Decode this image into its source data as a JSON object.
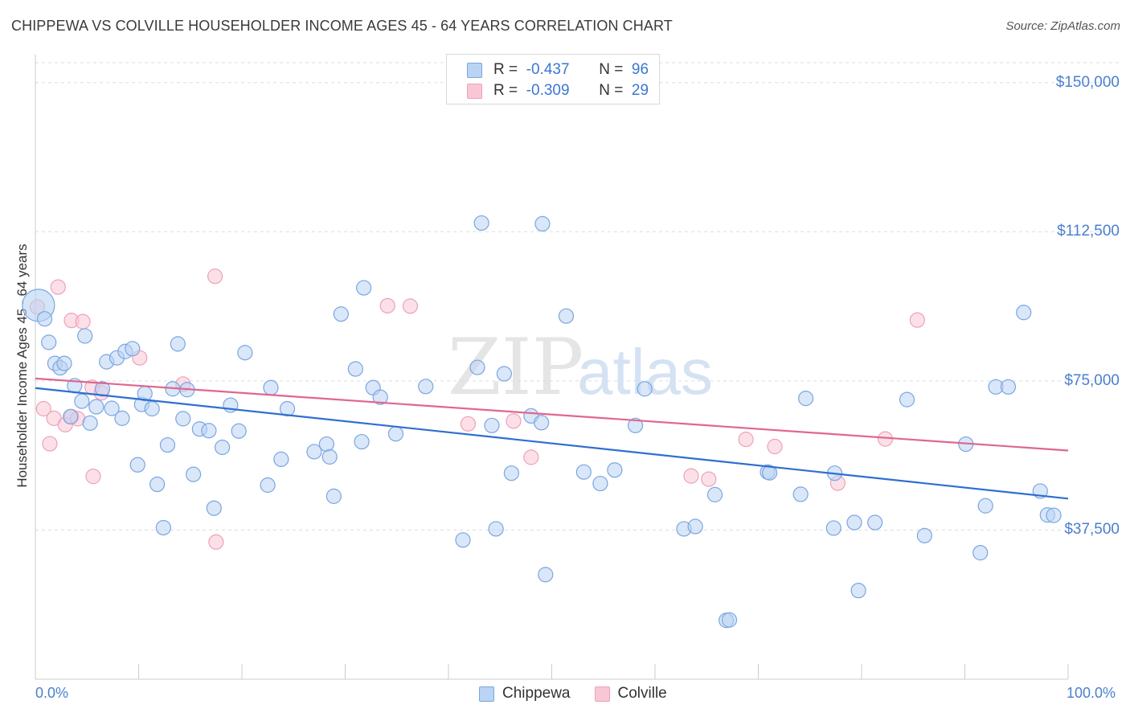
{
  "title": "CHIPPEWA VS COLVILLE HOUSEHOLDER INCOME AGES 45 - 64 YEARS CORRELATION CHART",
  "source": "Source: ZipAtlas.com",
  "watermark": {
    "zip": "ZIP",
    "atlas": "atlas"
  },
  "colors": {
    "chippewa_fill": "#b9d4f4",
    "chippewa_stroke": "#7aa6e0",
    "chippewa_line": "#2f6fcf",
    "colville_fill": "#f9c6d6",
    "colville_stroke": "#eea1b8",
    "colville_line": "#e06690",
    "tick_label": "#4a7fd0",
    "grid": "#dddddd"
  },
  "legend_top": [
    {
      "r_label": "R =",
      "r_value": "-0.437",
      "n_label": "N =",
      "n_value": "96"
    },
    {
      "r_label": "R =",
      "r_value": "-0.309",
      "n_label": "N =",
      "n_value": "29"
    }
  ],
  "legend_bottom": [
    "Chippewa",
    "Colville"
  ],
  "chart_data": {
    "type": "scatter",
    "title": "CHIPPEWA VS COLVILLE HOUSEHOLDER INCOME AGES 45 - 64 YEARS CORRELATION CHART",
    "xlabel": "",
    "ylabel": "Householder Income Ages 45 - 64 years",
    "xlim": [
      0,
      100
    ],
    "ylim": [
      0,
      155000
    ],
    "x_tick_labels": [
      "0.0%",
      "100.0%"
    ],
    "y_ticks": [
      37500,
      75000,
      112500,
      150000
    ],
    "y_tick_labels": [
      "$37,500",
      "$75,000",
      "$112,500",
      "$150,000"
    ],
    "grid": "horizontal dashed",
    "legend_placement": "top-center",
    "series": [
      {
        "name": "Chippewa",
        "stats": {
          "R": -0.437,
          "N": 96
        },
        "trend": {
          "x": [
            0,
            100
          ],
          "y": [
            73200,
            45400
          ]
        },
        "points": [
          {
            "x": 0.3,
            "y": 94000,
            "big": true
          },
          {
            "x": 0.9,
            "y": 90600
          },
          {
            "x": 1.3,
            "y": 84700
          },
          {
            "x": 1.9,
            "y": 79400
          },
          {
            "x": 2.4,
            "y": 78300
          },
          {
            "x": 2.8,
            "y": 79400
          },
          {
            "x": 3.4,
            "y": 66000
          },
          {
            "x": 3.8,
            "y": 73800
          },
          {
            "x": 4.5,
            "y": 69900
          },
          {
            "x": 4.8,
            "y": 86300
          },
          {
            "x": 5.3,
            "y": 64400
          },
          {
            "x": 5.9,
            "y": 68500
          },
          {
            "x": 6.5,
            "y": 73000
          },
          {
            "x": 6.9,
            "y": 79800
          },
          {
            "x": 7.4,
            "y": 68100
          },
          {
            "x": 7.9,
            "y": 80800
          },
          {
            "x": 8.4,
            "y": 65600
          },
          {
            "x": 8.7,
            "y": 82400
          },
          {
            "x": 9.4,
            "y": 83100
          },
          {
            "x": 9.9,
            "y": 53900
          },
          {
            "x": 10.3,
            "y": 69100
          },
          {
            "x": 10.6,
            "y": 71800
          },
          {
            "x": 11.3,
            "y": 68000
          },
          {
            "x": 11.8,
            "y": 49000
          },
          {
            "x": 12.4,
            "y": 38100
          },
          {
            "x": 12.8,
            "y": 58900
          },
          {
            "x": 13.3,
            "y": 73000
          },
          {
            "x": 13.8,
            "y": 84300
          },
          {
            "x": 14.3,
            "y": 65500
          },
          {
            "x": 14.7,
            "y": 72800
          },
          {
            "x": 15.3,
            "y": 51500
          },
          {
            "x": 15.9,
            "y": 62900
          },
          {
            "x": 16.8,
            "y": 62500
          },
          {
            "x": 17.3,
            "y": 43000
          },
          {
            "x": 18.1,
            "y": 58300
          },
          {
            "x": 18.9,
            "y": 68900
          },
          {
            "x": 19.7,
            "y": 62400
          },
          {
            "x": 20.3,
            "y": 82100
          },
          {
            "x": 22.5,
            "y": 48800
          },
          {
            "x": 22.8,
            "y": 73300
          },
          {
            "x": 23.8,
            "y": 55300
          },
          {
            "x": 24.4,
            "y": 68000
          },
          {
            "x": 27.0,
            "y": 57200
          },
          {
            "x": 28.2,
            "y": 59100
          },
          {
            "x": 28.5,
            "y": 55900
          },
          {
            "x": 28.9,
            "y": 46000
          },
          {
            "x": 29.6,
            "y": 91800
          },
          {
            "x": 31.0,
            "y": 78000
          },
          {
            "x": 31.6,
            "y": 59700
          },
          {
            "x": 31.8,
            "y": 98400
          },
          {
            "x": 32.7,
            "y": 73300
          },
          {
            "x": 33.4,
            "y": 70900
          },
          {
            "x": 34.9,
            "y": 61700
          },
          {
            "x": 37.8,
            "y": 73600
          },
          {
            "x": 41.4,
            "y": 35000
          },
          {
            "x": 42.8,
            "y": 78400
          },
          {
            "x": 43.2,
            "y": 114700
          },
          {
            "x": 44.2,
            "y": 63800
          },
          {
            "x": 44.6,
            "y": 37800
          },
          {
            "x": 45.4,
            "y": 76800
          },
          {
            "x": 46.1,
            "y": 51800
          },
          {
            "x": 48.0,
            "y": 66200
          },
          {
            "x": 49.0,
            "y": 64500
          },
          {
            "x": 49.1,
            "y": 114500
          },
          {
            "x": 49.4,
            "y": 26300
          },
          {
            "x": 51.4,
            "y": 91300
          },
          {
            "x": 53.1,
            "y": 52100
          },
          {
            "x": 54.7,
            "y": 49200
          },
          {
            "x": 56.1,
            "y": 52600
          },
          {
            "x": 58.1,
            "y": 63800
          },
          {
            "x": 59.0,
            "y": 73000
          },
          {
            "x": 62.8,
            "y": 37800
          },
          {
            "x": 63.9,
            "y": 38400
          },
          {
            "x": 65.8,
            "y": 46400
          },
          {
            "x": 66.9,
            "y": 14800
          },
          {
            "x": 67.2,
            "y": 14900
          },
          {
            "x": 70.9,
            "y": 52100
          },
          {
            "x": 71.1,
            "y": 51900
          },
          {
            "x": 74.1,
            "y": 46500
          },
          {
            "x": 74.6,
            "y": 70600
          },
          {
            "x": 77.3,
            "y": 38000
          },
          {
            "x": 77.4,
            "y": 51800
          },
          {
            "x": 79.3,
            "y": 39400
          },
          {
            "x": 79.7,
            "y": 22300
          },
          {
            "x": 81.3,
            "y": 39400
          },
          {
            "x": 84.4,
            "y": 70300
          },
          {
            "x": 86.1,
            "y": 36100
          },
          {
            "x": 90.1,
            "y": 59100
          },
          {
            "x": 91.5,
            "y": 31800
          },
          {
            "x": 92.0,
            "y": 43600
          },
          {
            "x": 93.0,
            "y": 73500
          },
          {
            "x": 94.2,
            "y": 73500
          },
          {
            "x": 95.7,
            "y": 92200
          },
          {
            "x": 97.3,
            "y": 47300
          },
          {
            "x": 98.0,
            "y": 41300
          },
          {
            "x": 98.6,
            "y": 41200
          }
        ]
      },
      {
        "name": "Colville",
        "stats": {
          "R": -0.309,
          "N": 29
        },
        "trend": {
          "x": [
            0,
            100
          ],
          "y": [
            75600,
            57500
          ]
        },
        "points": [
          {
            "x": 0.2,
            "y": 93600
          },
          {
            "x": 0.8,
            "y": 68000
          },
          {
            "x": 1.4,
            "y": 59200
          },
          {
            "x": 1.8,
            "y": 65600
          },
          {
            "x": 2.2,
            "y": 98600
          },
          {
            "x": 2.9,
            "y": 64000
          },
          {
            "x": 3.5,
            "y": 66000
          },
          {
            "x": 3.5,
            "y": 90200
          },
          {
            "x": 4.1,
            "y": 65500
          },
          {
            "x": 4.6,
            "y": 89900
          },
          {
            "x": 5.5,
            "y": 73400
          },
          {
            "x": 5.6,
            "y": 51000
          },
          {
            "x": 6.4,
            "y": 72000
          },
          {
            "x": 10.1,
            "y": 80800
          },
          {
            "x": 14.3,
            "y": 74200
          },
          {
            "x": 17.4,
            "y": 101300
          },
          {
            "x": 17.5,
            "y": 34500
          },
          {
            "x": 34.1,
            "y": 93900
          },
          {
            "x": 36.3,
            "y": 93800
          },
          {
            "x": 41.9,
            "y": 64200
          },
          {
            "x": 46.3,
            "y": 64900
          },
          {
            "x": 48.0,
            "y": 55800
          },
          {
            "x": 63.5,
            "y": 51100
          },
          {
            "x": 65.2,
            "y": 50300
          },
          {
            "x": 68.8,
            "y": 60300
          },
          {
            "x": 71.6,
            "y": 58500
          },
          {
            "x": 77.7,
            "y": 49300
          },
          {
            "x": 82.3,
            "y": 60400
          },
          {
            "x": 85.4,
            "y": 90300
          }
        ]
      }
    ]
  }
}
